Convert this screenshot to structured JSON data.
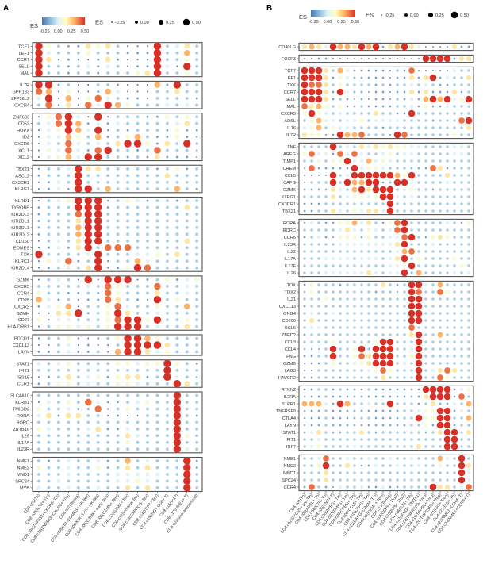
{
  "chart_data": [
    {
      "type": "dotplot",
      "panel_label": "A",
      "legend": {
        "color_title": "ES",
        "color_ticks": [
          "-0.25",
          "0.00",
          "0.25",
          "0.50"
        ],
        "size_title": "ES",
        "size_ticks": [
          "-0.25",
          "0.00",
          "0.25",
          "0.50"
        ]
      },
      "es_scale": {
        "level_0_value": -0.3,
        "step_per_level": 0.1
      },
      "columns": [
        "CD8.c01(Tn)",
        "CD8.c02(IL7R+ Tm)",
        "CD8.c04(ZNF683+CXCR6- Tm)",
        "CD8.c10(ZNF683+CXCR6+ Trm)",
        "CD8.c07(Temra)",
        "CD8.c08(KIR+EOMES+ NK-like)",
        "CD8.c09(KIR+TXK+ NK-like)",
        "CD8.c05(GZMK+ early Tem)",
        "CD8.c06(GZMK+ Tem)",
        "CD8.c11(GZMK+ Tex)",
        "CD8.c12(terminal Tex)",
        "CD8.c13(OXPHOS- Tex)",
        "CD8.c14(TCF7+ Tex)",
        "CD8.c15(ISG+ CD8+ T)",
        "CD8.c16(Tc17)",
        "CD8.c17(NME1+ T)",
        "CD8.c03(uncharacterized)"
      ],
      "groups": [
        [
          {
            "gene": "TCF7",
            "levels": "94211545200092352"
          },
          {
            "gene": "LEF1",
            "levels": "93222422211182262"
          },
          {
            "gene": "CCR7",
            "levels": "95010015100092242"
          },
          {
            "gene": "SELL",
            "levels": "92212313201193092"
          },
          {
            "gene": "MAL",
            "levels": "92212212224592242"
          }
        ],
        [
          {
            "gene": "IL7R",
            "levels": "99120022100061922"
          },
          {
            "gene": "GPR183",
            "levels": "76040016300022522"
          },
          {
            "gene": "ZFP36L2",
            "levels": "39060473211022221"
          },
          {
            "gene": "CXCR4",
            "levels": "27050739642223232"
          }
        ],
        [
          {
            "gene": "ZNF683",
            "levels": "04793080222114242"
          },
          {
            "gene": "CD52",
            "levels": "23796131322222352"
          },
          {
            "gene": "HOPX",
            "levels": "03486390212221411"
          },
          {
            "gene": "ID2",
            "levels": "03364261246211410"
          },
          {
            "gene": "CXCR6",
            "levels": "03273232599415292"
          },
          {
            "gene": "XCL1",
            "levels": "04373179221272220"
          },
          {
            "gene": "XCL2",
            "levels": "03463992212151110"
          }
        ],
        [
          {
            "gene": "TBX21",
            "levels": "02239552222212412"
          },
          {
            "gene": "ASCL2",
            "levels": "12229222222225222"
          },
          {
            "gene": "CX3CR1",
            "levels": "01329222222222222"
          },
          {
            "gene": "KLRG1",
            "levels": "01309926222222621"
          }
        ],
        [
          {
            "gene": "KLRD1",
            "levels": "02349990243122122"
          },
          {
            "gene": "TYROBP",
            "levels": "12228991222222252"
          },
          {
            "gene": "KIR2DL3",
            "levels": "12227992222222222"
          },
          {
            "gene": "KIR2DL1",
            "levels": "12225992222222222"
          },
          {
            "gene": "KIR3DL1",
            "levels": "12226992222222222"
          },
          {
            "gene": "KIR3DL2",
            "levels": "12226992222222222"
          },
          {
            "gene": "CD160",
            "levels": "02325992222222252"
          },
          {
            "gene": "EOMES",
            "levels": "01315827772222222"
          },
          {
            "gene": "TXK",
            "levels": "92222392223342522"
          },
          {
            "gene": "KLRC1",
            "levels": "04371290226322222"
          },
          {
            "gene": "KIR2DL4",
            "levels": "01232590149722222"
          }
        ],
        [
          {
            "gene": "GZMK",
            "levels": "02320909990124134"
          },
          {
            "gene": "CXCR5",
            "levels": "22222327422272232"
          },
          {
            "gene": "CCR4",
            "levels": "42211217422252232"
          },
          {
            "gene": "CD28",
            "levels": "63120117521082422"
          },
          {
            "gene": "CXCR3",
            "levels": "13460224732242262"
          },
          {
            "gene": "GZMH",
            "levels": "00559124852232222"
          },
          {
            "gene": "CD27",
            "levels": "40332224799492242"
          },
          {
            "gene": "HLA-DRB1",
            "levels": "02443424999232252"
          }
        ],
        [
          {
            "gene": "PDCD1",
            "levels": "02240012499642222"
          },
          {
            "gene": "CXCL13",
            "levels": "00230100299995222"
          },
          {
            "gene": "LAYN",
            "levels": "11231120699534222"
          }
        ],
        [
          {
            "gene": "STAT1",
            "levels": "32342222443449421"
          },
          {
            "gene": "IFIT1",
            "levels": "22222222222229222"
          },
          {
            "gene": "ISG15",
            "levels": "01252341455129320"
          },
          {
            "gene": "CCR1",
            "levels": "12442322443222852"
          }
        ],
        [
          {
            "gene": "SLC4A10",
            "levels": "22222222222222922"
          },
          {
            "gene": "KLRB1",
            "levels": "03242730023422922"
          },
          {
            "gene": "TMIGD2",
            "levels": "42231170242222922"
          },
          {
            "gene": "RORA",
            "levels": "35155220100222921"
          },
          {
            "gene": "RORC",
            "levels": "22222222222222922"
          },
          {
            "gene": "ZBTB16",
            "levels": "43222351132222922"
          },
          {
            "gene": "IL26",
            "levels": "22222222253222842"
          },
          {
            "gene": "IL17A",
            "levels": "22222222242222822"
          },
          {
            "gene": "IL23R",
            "levels": "22222222222222932"
          }
        ],
        [
          {
            "gene": "NME1",
            "levels": "21232231262322291"
          },
          {
            "gene": "NME2",
            "levels": "42232241252522291"
          },
          {
            "gene": "MND1",
            "levels": "22232222333332292"
          },
          {
            "gene": "SPC24",
            "levels": "22322222334322292"
          },
          {
            "gene": "MYB",
            "levels": "32232232252522282"
          }
        ]
      ]
    },
    {
      "type": "dotplot",
      "panel_label": "B",
      "legend": {
        "color_title": "ES",
        "color_ticks": [
          "-0.25",
          "0.00",
          "0.25",
          "0.50"
        ],
        "size_title": "ES",
        "size_ticks": [
          "-0.25",
          "0.00",
          "0.25",
          "0.50"
        ]
      },
      "es_scale": {
        "level_0_value": -0.3,
        "step_per_level": 0.1
      },
      "columns": [
        "CD4.c01(Tn)",
        "CD4.c02(CXCR5+ pre-Tfh)",
        "CD4.c03(ADSL+ Tn)",
        "CD4.c04(IL7R- Tn)",
        "CD4.c05(TNF+ T)",
        "CD4.c06(AREG+ Tm)",
        "CD4.c07(TIMP1+ Tm)",
        "CD4.c08(CREM+ Tm)",
        "CD4.c09(CCL5+ Tm)",
        "CD4.c10(CAPG+ Tm)",
        "CD4.c11(CAPG+CREM- Tm)",
        "CD4.c12(GZMK+ Tem)",
        "CD4.c13(Temra)",
        "CD4.c14(CCR6+ Th17)",
        "CD4.c15(IL26+ Th17)",
        "CD4.c16(IL21+ Tfh)",
        "CD4.c17(IFNG+ Tfh/Th1)",
        "CD4.c18(TNFRSF9- Treg)",
        "CD4.c19(S1PR1+ Treg)",
        "CD4.c20(TNFRSF9+ Treg)",
        "CD4.c21(ISG+ Treg)",
        "CD4.c22(ISG+ Th)",
        "CD4.c23(NME1+CCR4- T)",
        "CD4.c24(NME1+CCR4+ T)"
      ],
      "groups": [
        [
          {
            "gene": "CD40LG",
            "levels": "565396659681569530000511"
          }
        ],
        [
          {
            "gene": "FOXP3",
            "levels": "001100000000000009999155"
          }
        ],
        [
          {
            "gene": "TCF7",
            "levels": "999526311111021700000322"
          },
          {
            "gene": "LEF1",
            "levels": "889514311111011515913225"
          },
          {
            "gene": "TXK",
            "levels": "877524222212122323211222"
          },
          {
            "gene": "CCR7",
            "levels": "999518311011011515111512"
          },
          {
            "gene": "SELL",
            "levels": "989512101011021316969349"
          },
          {
            "gene": "MAL",
            "levels": "756424112111122314113222"
          },
          {
            "gene": "CXCR5",
            "levels": "494323222252211822222222"
          },
          {
            "gene": "ADSL",
            "levels": "246332334233332222122278"
          },
          {
            "gene": "IL16",
            "levels": "346243322221222222222225"
          },
          {
            "gene": "IL7R",
            "levels": "544019667222097222222422"
          }
        ],
        [
          {
            "gene": "TNF",
            "levels": "222292325354544332222332"
          },
          {
            "gene": "AREG",
            "levels": "473317373223423322222332"
          },
          {
            "gene": "TIMP1",
            "levels": "224244933634322222222222"
          },
          {
            "gene": "CREM",
            "levels": "071111193443222111751222"
          },
          {
            "gene": "CCL5",
            "levels": "000092399999964922225222"
          },
          {
            "gene": "CAPG",
            "levels": "022292966991299322223222"
          },
          {
            "gene": "GZMK",
            "levels": "111153269599923422122222"
          },
          {
            "gene": "KLRG1",
            "levels": "222252344349932322222222"
          },
          {
            "gene": "CX3CR1",
            "levels": "111222222222922222222222"
          },
          {
            "gene": "TBX21",
            "levels": "112253243553922222222222"
          }
        ],
        [
          {
            "gene": "RORA",
            "levels": "032114463521479222223214"
          },
          {
            "gene": "RORC",
            "levels": "222223532432379222222222"
          },
          {
            "gene": "CCR6",
            "levels": "123104441422337921454222"
          },
          {
            "gene": "IL23R",
            "levels": "222223333333359222322222"
          },
          {
            "gene": "IL22",
            "levels": "222222222222236722222222"
          },
          {
            "gene": "IL17A",
            "levels": "222333323332359242222422"
          },
          {
            "gene": "IL17F",
            "levels": "222222222222334922222242"
          },
          {
            "gene": "IL26",
            "levels": "222333333532339262222323"
          }
        ],
        [
          {
            "gene": "TOX",
            "levels": "142221222225212993262222"
          },
          {
            "gene": "TOX2",
            "levels": "042222222212202972274222"
          },
          {
            "gene": "IL21",
            "levels": "222422222222222992222222"
          },
          {
            "gene": "CXCL13",
            "levels": "122222222222222992222222"
          },
          {
            "gene": "GNG4",
            "levels": "232232222222222992222222"
          },
          {
            "gene": "CD200",
            "levels": "252222222222222992222222"
          },
          {
            "gene": "BCL6",
            "levels": "233222222222222722222222"
          },
          {
            "gene": "ZBED2",
            "levels": "122222222222222592262222"
          },
          {
            "gene": "CCL3",
            "levels": "222242222249922292222222"
          },
          {
            "gene": "CCL4",
            "levels": "000292249299922392222222"
          },
          {
            "gene": "IFNG",
            "levels": "112292247599822492222222"
          },
          {
            "gene": "GZMB",
            "levels": "011242234598923292222222"
          },
          {
            "gene": "LAG3",
            "levels": "002222222347422292357522"
          },
          {
            "gene": "HAVCR2",
            "levels": "112221222225222292274222"
          }
        ],
        [
          {
            "gene": "RTKN2",
            "levels": "112212111211111119999134"
          },
          {
            "gene": "IL2RA",
            "levels": "011211111111111115899172"
          },
          {
            "gene": "S1PR1",
            "levels": "666318622322822212511326"
          },
          {
            "gene": "TNFRSF9",
            "levels": "011211111111112234499132"
          },
          {
            "gene": "CTLA4",
            "levels": "011211112211112294499226"
          },
          {
            "gene": "LAYN",
            "levels": "011211111111111224199122"
          },
          {
            "gene": "STAT1",
            "levels": "135211225212222221259925"
          },
          {
            "gene": "IFIT1",
            "levels": "223222222222222222229922"
          },
          {
            "gene": "IRF7",
            "levels": "234222232222222252229922"
          }
        ],
        [
          {
            "gene": "NME1",
            "levels": "223722322322322322263292"
          },
          {
            "gene": "NME2",
            "levels": "224822521132232232242295"
          },
          {
            "gene": "MND1",
            "levels": "222522222222222222222293"
          },
          {
            "gene": "SPC24",
            "levels": "222522222222222222222283"
          },
          {
            "gene": "CCR4",
            "levels": "172103223113112222955237"
          }
        ]
      ]
    }
  ]
}
